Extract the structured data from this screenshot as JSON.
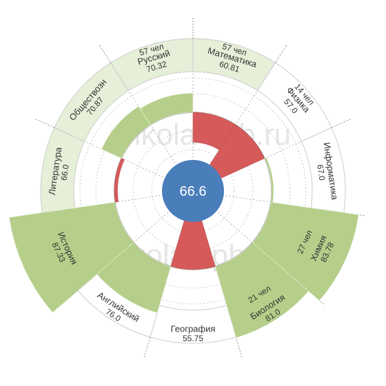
{
  "chart_data": {
    "type": "radial-bar",
    "center_value": "66.6",
    "watermark": "shkola-spb.ru",
    "colors": {
      "above": "#b5cf8a",
      "below": "#d75a5a",
      "band_highlight": "#e6efd8",
      "center": "#4a7ebb"
    },
    "sectors": [
      {
        "subject": "Математика",
        "score": "60.81",
        "count": "57 чел",
        "highlight": true
      },
      {
        "subject": "Физика",
        "score": "57.0",
        "count": "14 чел",
        "highlight": false
      },
      {
        "subject": "Информатика",
        "score": "67.0",
        "count": "",
        "highlight": false
      },
      {
        "subject": "Химия",
        "score": "83.78",
        "count": "27 чел",
        "highlight": true
      },
      {
        "subject": "Биология",
        "score": "81.0",
        "count": "21 чел",
        "highlight": true
      },
      {
        "subject": "География",
        "score": "55.75",
        "count": "",
        "highlight": false
      },
      {
        "subject": "Английский",
        "score": "76.0",
        "count": "",
        "highlight": false
      },
      {
        "subject": "История",
        "score": "87.33",
        "count": "",
        "highlight": true
      },
      {
        "subject": "Литература",
        "score": "66.0",
        "count": "",
        "highlight": true
      },
      {
        "subject": "Обществозн",
        "score": "70.87",
        "count": "",
        "highlight": true
      },
      {
        "subject": "Русский",
        "score": "70.32",
        "count": "57 чел",
        "highlight": true
      }
    ]
  }
}
